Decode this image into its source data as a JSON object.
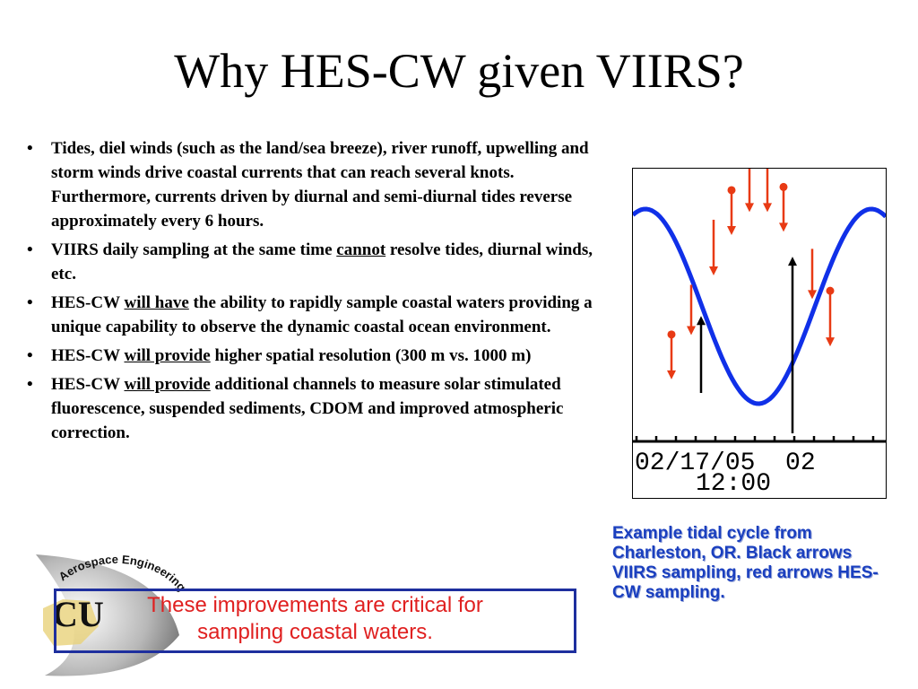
{
  "slide": {
    "title": "Why HES-CW given VIIRS?"
  },
  "bullets": [
    {
      "parts": [
        {
          "t": "Tides, diel winds (such as the land/sea breeze), river runoff, upwelling and storm winds drive coastal currents that can reach several knots.  Furthermore, currents driven by diurnal and semi-diurnal tides reverse approximately every 6 hours."
        }
      ]
    },
    {
      "parts": [
        {
          "t": "VIIRS daily sampling at the same time "
        },
        {
          "t": "cannot",
          "u": true
        },
        {
          "t": " resolve tides, diurnal winds, etc."
        }
      ]
    },
    {
      "parts": [
        {
          "t": "HES-CW "
        },
        {
          "t": "will have",
          "u": true
        },
        {
          "t": " the ability to rapidly sample coastal waters providing a unique capability to observe the dynamic coastal ocean environment."
        }
      ]
    },
    {
      "parts": [
        {
          "t": "HES-CW "
        },
        {
          "t": "will provide",
          "u": true
        },
        {
          "t": " higher spatial resolution (300 m vs. 1000 m)"
        }
      ]
    },
    {
      "parts": [
        {
          "t": "HES-CW "
        },
        {
          "t": "will provide",
          "u": true
        },
        {
          "t": " additional channels to measure solar stimulated fluorescence, suspended sediments, CDOM and improved atmospheric correction."
        }
      ]
    }
  ],
  "bullet_char": "•",
  "tide_plot": {
    "date_label": "02/17/05  02",
    "time_label": "12:00",
    "curve_color": "#1030e8",
    "hes_arrow_color": "#e83a14",
    "viirs_arrow_color": "#000000"
  },
  "caption": {
    "text": "Example tidal cycle from Charleston, OR.  Black arrows VIIRS sampling, red arrows HES-CW sampling."
  },
  "callout": {
    "line1": "These improvements are critical for",
    "line2": "sampling coastal waters."
  },
  "logo": {
    "ring_text": "Aerospace Engineering",
    "monogram": "CU"
  },
  "colors": {
    "caption": "#1a3fbf",
    "callout_text": "#e02020",
    "callout_border": "#1e2f9e"
  }
}
